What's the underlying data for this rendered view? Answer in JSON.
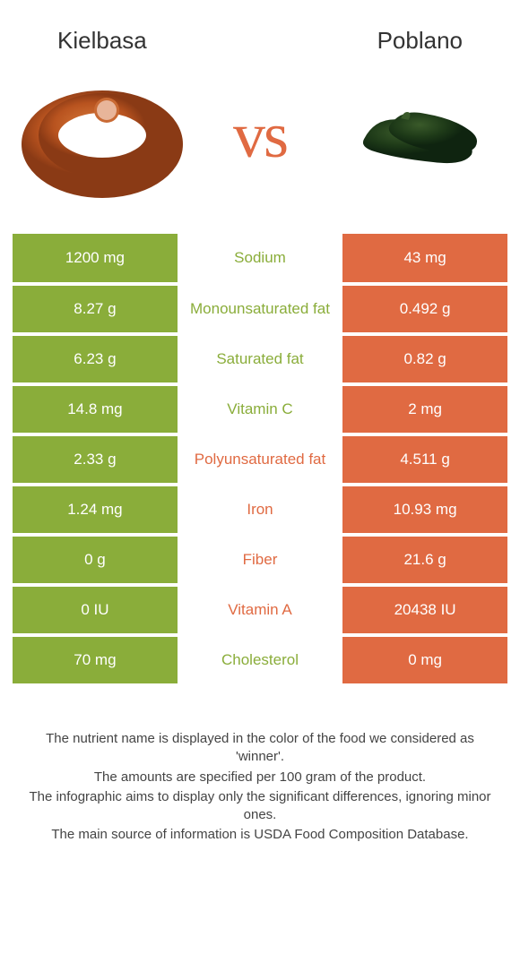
{
  "colors": {
    "left_bg": "#8aad3a",
    "right_bg": "#e06a42",
    "left_text": "#8aad3a",
    "right_text": "#e06a42"
  },
  "left_food": "Kielbasa",
  "right_food": "Poblano",
  "vs_label": "vs",
  "rows": [
    {
      "left": "1200 mg",
      "name": "Sodium",
      "right": "43 mg",
      "winner": "left"
    },
    {
      "left": "8.27 g",
      "name": "Monounsaturated fat",
      "right": "0.492 g",
      "winner": "left"
    },
    {
      "left": "6.23 g",
      "name": "Saturated fat",
      "right": "0.82 g",
      "winner": "left"
    },
    {
      "left": "14.8 mg",
      "name": "Vitamin C",
      "right": "2 mg",
      "winner": "left"
    },
    {
      "left": "2.33 g",
      "name": "Polyunsaturated fat",
      "right": "4.511 g",
      "winner": "right"
    },
    {
      "left": "1.24 mg",
      "name": "Iron",
      "right": "10.93 mg",
      "winner": "right"
    },
    {
      "left": "0 g",
      "name": "Fiber",
      "right": "21.6 g",
      "winner": "right"
    },
    {
      "left": "0 IU",
      "name": "Vitamin A",
      "right": "20438 IU",
      "winner": "right"
    },
    {
      "left": "70 mg",
      "name": "Cholesterol",
      "right": "0 mg",
      "winner": "left"
    }
  ],
  "footer": [
    "The nutrient name is displayed in the color of the food we considered as 'winner'.",
    "The amounts are specified per 100 gram of the product.",
    "The infographic aims to display only the significant differences, ignoring minor ones.",
    "The main source of information is USDA Food Composition Database."
  ]
}
